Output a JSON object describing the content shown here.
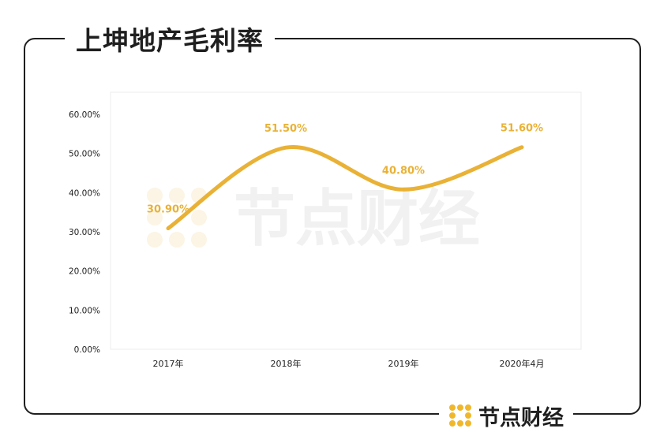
{
  "title": "上坤地产毛利率",
  "brand": {
    "name": "节点财经",
    "accent": "#f0b72a"
  },
  "watermark": "节点财经",
  "colors": {
    "line": "#e9b236",
    "label": "#e9b236",
    "axis_text": "#222222",
    "grid": "#e6e6e6"
  },
  "chart_data": {
    "type": "line",
    "categories": [
      "2017年",
      "2018年",
      "2019年",
      "2020年4月"
    ],
    "series": [
      {
        "values": [
          30.9,
          51.5,
          40.8,
          51.6
        ],
        "labels": [
          "30.90%",
          "51.50%",
          "40.80%",
          "51.60%"
        ]
      }
    ],
    "ylim": [
      0,
      60
    ],
    "yticks": [
      0,
      10,
      20,
      30,
      40,
      50,
      60
    ],
    "ytick_labels": [
      "0.00%",
      "10.00%",
      "20.00%",
      "30.00%",
      "40.00%",
      "50.00%",
      "60.00%"
    ],
    "smooth": true,
    "grid": false
  }
}
